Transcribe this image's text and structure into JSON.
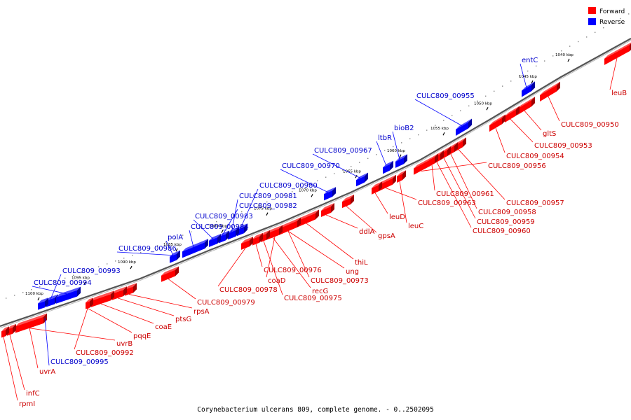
{
  "caption": "Corynebacterium ulcerans 809, complete genome. - 0..2502095",
  "legend": [
    {
      "label": "Forward",
      "color": "#ff0000"
    },
    {
      "label": "Reverse",
      "color": "#0000ff"
    }
  ],
  "colors": {
    "forward": "#ff0000",
    "reverse": "#0000ff",
    "forward_label": "#cc0000",
    "reverse_label": "#0000cc"
  },
  "ticks": [
    "1040 kbp",
    "1045 kbp",
    "1050 kbp",
    "1055 kbp",
    "1060 kbp",
    "1065 kbp",
    "1070 kbp",
    "1075 kbp",
    "1080 kbp",
    "1085 kbp",
    "1090 kbp",
    "1095 kbp",
    "1100 kbp"
  ],
  "reverse_genes": [
    "entC",
    "CULC809_00955",
    "bioB2",
    "ltbR",
    "CULC809_00967",
    "CULC809_00970",
    "CULC809_00980",
    "CULC809_00981",
    "CULC809_00982",
    "CULC809_00983",
    "CULC809_00984",
    "polA",
    "CULC809_00986",
    "CULC809_00993",
    "CULC809_00994",
    "CULC809_00995"
  ],
  "forward_genes": [
    "leuB",
    "CULC809_00950",
    "gltS",
    "CULC809_00953",
    "CULC809_00954",
    "CULC809_00956",
    "CULC809_00957",
    "CULC809_00958",
    "CULC809_00959",
    "CULC809_00960",
    "CULC809_00961",
    "CULC809_00963",
    "leuC",
    "leuD",
    "gpsA",
    "ddlA",
    "thiL",
    "CULC809_00973",
    "ung",
    "recG",
    "CULC809_00975",
    "CULC809_00976",
    "coaD",
    "CULC809_00978",
    "CULC809_00979",
    "rpsA",
    "ptsG",
    "coaE",
    "pqqE",
    "uvrB",
    "CULC809_00992",
    "uvrA",
    "infC",
    "rpmI"
  ]
}
